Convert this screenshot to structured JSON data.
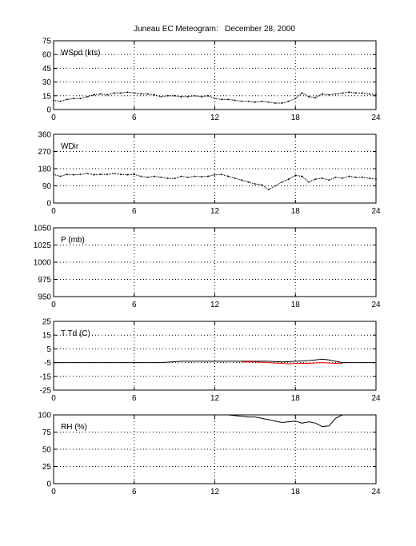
{
  "title": "Juneau EC Meteogram:   December 28, 2000",
  "chart_data": [
    {
      "id": "wspd",
      "type": "scatter",
      "label": "WSpd (kts)",
      "xlim": [
        0,
        24
      ],
      "ylim": [
        0,
        75
      ],
      "xticks": [
        "0",
        "6",
        "12",
        "18",
        "24"
      ],
      "yticks": [
        "0",
        "15",
        "30",
        "45",
        "60",
        "75"
      ],
      "grid": true,
      "series": [
        {
          "color": "#000000",
          "x": [
            0,
            0.5,
            1,
            1.5,
            2,
            2.5,
            3,
            3.5,
            4,
            4.5,
            5,
            5.5,
            6,
            6.5,
            7,
            7.5,
            8,
            8.5,
            9,
            9.5,
            10,
            10.5,
            11,
            11.5,
            12,
            12.5,
            13,
            13.5,
            14,
            14.5,
            15,
            15.5,
            16,
            16.5,
            17,
            17.5,
            18,
            18.5,
            19,
            19.5,
            20,
            20.5,
            21,
            21.5,
            22,
            22.5,
            23,
            23.5,
            24
          ],
          "y": [
            10,
            9,
            11,
            12,
            12,
            14,
            16,
            17,
            16,
            18,
            18,
            19,
            18,
            17,
            17,
            16,
            14,
            15,
            15,
            14,
            14,
            15,
            14,
            15,
            12,
            11,
            11,
            10,
            9,
            9,
            8,
            9,
            8,
            7,
            7,
            9,
            12,
            18,
            14,
            13,
            17,
            16,
            17,
            18,
            19,
            18,
            18,
            17,
            16
          ]
        }
      ]
    },
    {
      "id": "wdir",
      "type": "scatter",
      "label": "WDir",
      "xlim": [
        0,
        24
      ],
      "ylim": [
        0,
        360
      ],
      "xticks": [
        "0",
        "6",
        "12",
        "18",
        "24"
      ],
      "yticks": [
        "0",
        "90",
        "180",
        "270",
        "360"
      ],
      "grid": true,
      "series": [
        {
          "color": "#000000",
          "x": [
            0,
            0.5,
            1,
            1.5,
            2,
            2.5,
            3,
            3.5,
            4,
            4.5,
            5,
            5.5,
            6,
            6.5,
            7,
            7.5,
            8,
            8.5,
            9,
            9.5,
            10,
            10.5,
            11,
            11.5,
            12,
            12.5,
            13,
            13.5,
            14,
            14.5,
            15,
            15.5,
            16,
            16.5,
            17,
            17.5,
            18,
            18.5,
            19,
            19.5,
            20,
            20.5,
            21,
            21.5,
            22,
            22.5,
            23,
            23.5,
            24
          ],
          "y": [
            150,
            140,
            150,
            148,
            150,
            155,
            148,
            150,
            150,
            155,
            150,
            148,
            150,
            140,
            135,
            140,
            135,
            130,
            128,
            140,
            135,
            140,
            138,
            140,
            148,
            150,
            140,
            130,
            120,
            110,
            100,
            95,
            70,
            90,
            110,
            125,
            145,
            140,
            110,
            125,
            130,
            120,
            135,
            130,
            140,
            135,
            135,
            130,
            125
          ]
        }
      ]
    },
    {
      "id": "pres",
      "type": "line",
      "label": "P (mb)",
      "xlim": [
        0,
        24
      ],
      "ylim": [
        950,
        1050
      ],
      "xticks": [
        "0",
        "6",
        "12",
        "18",
        "24"
      ],
      "yticks": [
        "950",
        "975",
        "1000",
        "1025",
        "1050"
      ],
      "grid": true,
      "series": []
    },
    {
      "id": "ttd",
      "type": "line",
      "label": "T Td (C)",
      "xlim": [
        0,
        24
      ],
      "ylim": [
        -25,
        25
      ],
      "xticks": [
        "0",
        "6",
        "12",
        "18",
        "24"
      ],
      "yticks": [
        "-25",
        "-15",
        "-5",
        "5",
        "15",
        "25"
      ],
      "grid": true,
      "series": [
        {
          "color": "#000000",
          "x": [
            0,
            2,
            4,
            6,
            8,
            9.5,
            12,
            14,
            16,
            17,
            18,
            19,
            19.5,
            20,
            20.5,
            21,
            21.5,
            22,
            24
          ],
          "y": [
            -5,
            -5,
            -5,
            -5,
            -5,
            -4,
            -4,
            -4,
            -4,
            -4.5,
            -4,
            -3.5,
            -3,
            -2.5,
            -3,
            -4,
            -5,
            -5,
            -5
          ]
        },
        {
          "color": "#ff0000",
          "x": [
            14,
            15,
            16,
            17,
            17.5,
            18,
            19,
            20,
            21,
            21.5
          ],
          "y": [
            -4.5,
            -4.5,
            -5,
            -5.5,
            -6,
            -5.5,
            -5.5,
            -5,
            -5.5,
            -5.5
          ]
        }
      ]
    },
    {
      "id": "rh",
      "type": "line",
      "label": "RH (%)",
      "xlim": [
        0,
        24
      ],
      "ylim": [
        0,
        100
      ],
      "xticks": [
        "0",
        "6",
        "12",
        "18",
        "24"
      ],
      "yticks": [
        "0",
        "25",
        "50",
        "75",
        "100"
      ],
      "grid": true,
      "series": [
        {
          "color": "#000000",
          "x": [
            13,
            13.5,
            14,
            14.5,
            15,
            15.5,
            16,
            16.5,
            17,
            17.5,
            18,
            18.5,
            19,
            19.5,
            20,
            20.5,
            21,
            21.5
          ],
          "y": [
            100,
            99,
            98,
            97,
            97,
            95,
            93,
            91,
            89,
            90,
            91,
            88,
            90,
            88,
            83,
            84,
            95,
            100
          ]
        }
      ]
    }
  ]
}
